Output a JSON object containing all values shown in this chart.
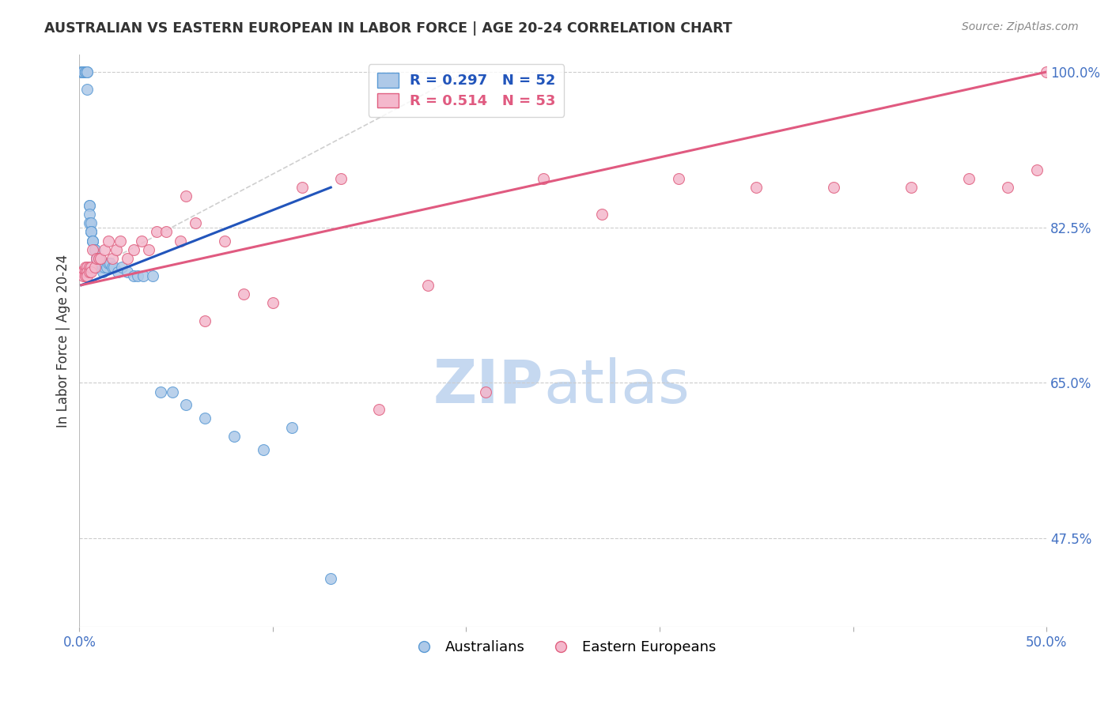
{
  "title": "AUSTRALIAN VS EASTERN EUROPEAN IN LABOR FORCE | AGE 20-24 CORRELATION CHART",
  "source": "Source: ZipAtlas.com",
  "ylabel": "In Labor Force | Age 20-24",
  "xlim": [
    0.0,
    0.5
  ],
  "ylim": [
    0.375,
    1.02
  ],
  "xticks": [
    0.0,
    0.1,
    0.2,
    0.3,
    0.4,
    0.5
  ],
  "xticklabels": [
    "0.0%",
    "",
    "",
    "",
    "",
    "50.0%"
  ],
  "yticks_right": [
    0.475,
    0.65,
    0.825,
    1.0
  ],
  "ytick_labels_right": [
    "47.5%",
    "65.0%",
    "82.5%",
    "100.0%"
  ],
  "grid_color": "#cccccc",
  "background_color": "#ffffff",
  "title_color": "#333333",
  "axis_label_color": "#333333",
  "tick_color": "#4472c4",
  "watermark_zip": "ZIP",
  "watermark_atlas": "atlas",
  "watermark_color_zip": "#c5d8f0",
  "watermark_color_atlas": "#c5d8f0",
  "legend_blue_label": "R = 0.297   N = 52",
  "legend_pink_label": "R = 0.514   N = 53",
  "australians_color": "#aec9e8",
  "eastern_europeans_color": "#f4b8cc",
  "australians_edge_color": "#5b9bd5",
  "eastern_europeans_edge_color": "#e06080",
  "trend_blue_color": "#2255bb",
  "trend_pink_color": "#e05a80",
  "ref_line_color": "#bbbbbb",
  "marker_size": 100,
  "aus_x": [
    0.001,
    0.001,
    0.002,
    0.002,
    0.003,
    0.003,
    0.003,
    0.004,
    0.004,
    0.004,
    0.005,
    0.005,
    0.005,
    0.005,
    0.006,
    0.006,
    0.006,
    0.006,
    0.007,
    0.007,
    0.007,
    0.008,
    0.008,
    0.009,
    0.009,
    0.01,
    0.01,
    0.011,
    0.011,
    0.012,
    0.012,
    0.013,
    0.014,
    0.015,
    0.016,
    0.017,
    0.018,
    0.02,
    0.022,
    0.025,
    0.028,
    0.03,
    0.033,
    0.038,
    0.042,
    0.048,
    0.055,
    0.065,
    0.08,
    0.095,
    0.11,
    0.13
  ],
  "aus_y": [
    1.0,
    1.0,
    1.0,
    1.0,
    1.0,
    1.0,
    1.0,
    1.0,
    1.0,
    0.98,
    0.85,
    0.85,
    0.84,
    0.83,
    0.83,
    0.82,
    0.82,
    0.82,
    0.81,
    0.81,
    0.81,
    0.8,
    0.8,
    0.79,
    0.79,
    0.79,
    0.785,
    0.78,
    0.78,
    0.78,
    0.775,
    0.78,
    0.78,
    0.785,
    0.785,
    0.78,
    0.78,
    0.775,
    0.78,
    0.775,
    0.77,
    0.77,
    0.77,
    0.77,
    0.64,
    0.64,
    0.625,
    0.61,
    0.59,
    0.575,
    0.6,
    0.43
  ],
  "ee_x": [
    0.001,
    0.001,
    0.002,
    0.002,
    0.002,
    0.003,
    0.003,
    0.003,
    0.004,
    0.004,
    0.004,
    0.005,
    0.005,
    0.006,
    0.006,
    0.007,
    0.008,
    0.009,
    0.01,
    0.011,
    0.013,
    0.015,
    0.017,
    0.019,
    0.021,
    0.025,
    0.028,
    0.032,
    0.036,
    0.04,
    0.045,
    0.052,
    0.055,
    0.06,
    0.065,
    0.075,
    0.085,
    0.1,
    0.115,
    0.135,
    0.155,
    0.18,
    0.21,
    0.24,
    0.27,
    0.31,
    0.35,
    0.39,
    0.43,
    0.46,
    0.48,
    0.495,
    0.5
  ],
  "ee_y": [
    0.775,
    0.775,
    0.775,
    0.775,
    0.77,
    0.78,
    0.775,
    0.77,
    0.78,
    0.775,
    0.77,
    0.78,
    0.775,
    0.78,
    0.775,
    0.8,
    0.78,
    0.79,
    0.79,
    0.79,
    0.8,
    0.81,
    0.79,
    0.8,
    0.81,
    0.79,
    0.8,
    0.81,
    0.8,
    0.82,
    0.82,
    0.81,
    0.86,
    0.83,
    0.72,
    0.81,
    0.75,
    0.74,
    0.87,
    0.88,
    0.62,
    0.76,
    0.64,
    0.88,
    0.84,
    0.88,
    0.87,
    0.87,
    0.87,
    0.88,
    0.87,
    0.89,
    1.0
  ],
  "blue_trend_x": [
    0.001,
    0.13
  ],
  "blue_trend_y": [
    0.76,
    0.87
  ],
  "pink_trend_x": [
    0.001,
    0.5
  ],
  "pink_trend_y": [
    0.76,
    1.0
  ],
  "ref_line_x": [
    0.0,
    0.2
  ],
  "ref_line_y": [
    0.77,
    1.0
  ]
}
